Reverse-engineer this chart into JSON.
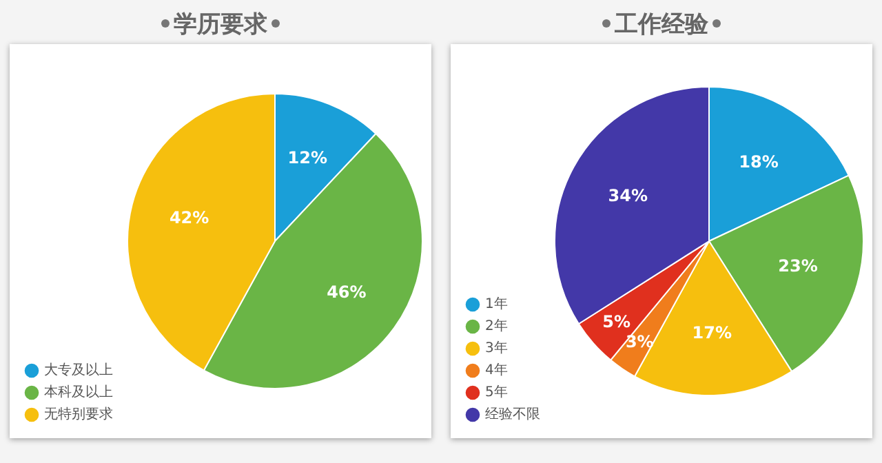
{
  "chart_data": [
    {
      "type": "pie",
      "title": "学历要求",
      "categories": [
        "大专及以上",
        "本科及以上",
        "无特别要求"
      ],
      "values": [
        12,
        46,
        42
      ],
      "colors": [
        "#1a9fd8",
        "#6ab546",
        "#f6bf0e"
      ],
      "value_labels": [
        "12%",
        "46%",
        "42%"
      ],
      "legend": "bottom left"
    },
    {
      "type": "pie",
      "title": "工作经验",
      "categories": [
        "1年",
        "2年",
        "3年",
        "4年",
        "5年",
        "经验不限"
      ],
      "values": [
        18,
        23,
        17,
        3,
        5,
        34
      ],
      "colors": [
        "#1a9fd8",
        "#6ab546",
        "#f6bf0e",
        "#f07d1c",
        "#e0301e",
        "#4338a8"
      ],
      "value_labels": [
        "18%",
        "23%",
        "17%",
        "3%",
        "5%",
        "34%"
      ],
      "legend": "bottom left"
    }
  ]
}
